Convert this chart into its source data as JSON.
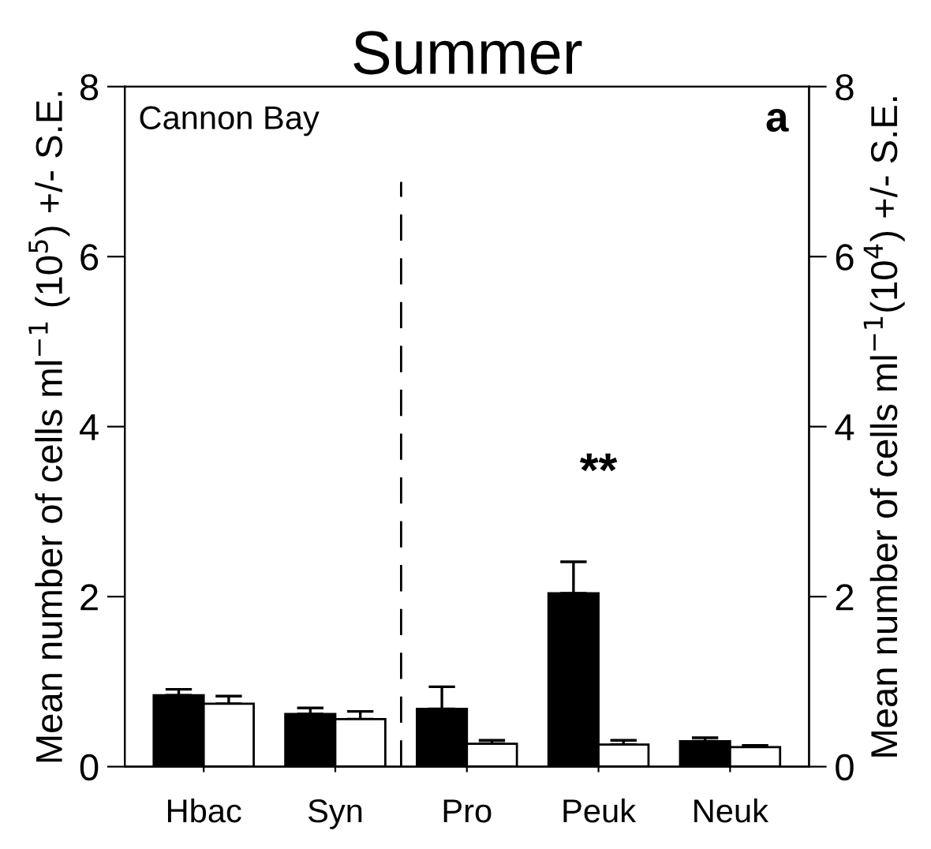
{
  "chart_data": {
    "type": "bar",
    "title": "Summer",
    "categories": [
      "Hbac",
      "Syn",
      "Pro",
      "Peuk",
      "Neuk"
    ],
    "series": [
      {
        "color": "#000000",
        "values": [
          0.84,
          0.62,
          0.68,
          2.04,
          0.3
        ],
        "errors": [
          [
            0.84,
            0.91
          ],
          [
            0.62,
            0.69
          ],
          [
            0.68,
            0.94
          ],
          [
            2.04,
            2.41
          ],
          [
            0.3,
            0.34
          ]
        ]
      },
      {
        "color": "#ffffff",
        "values": [
          0.74,
          0.56,
          0.27,
          0.26,
          0.23
        ],
        "errors": [
          [
            0.74,
            0.83
          ],
          [
            0.56,
            0.65
          ],
          [
            0.27,
            0.31
          ],
          [
            0.26,
            0.31
          ],
          [
            0.23,
            0.25
          ]
        ]
      }
    ],
    "ylabel": "Mean number of cells ml$^{−1}$ (10$^{5}$) +/- S.E.",
    "y2label": "Mean number of cells ml$^{−1}$(10$^{4}$) +/- S.E.",
    "ylim": [
      0,
      8
    ],
    "yticks": [
      0,
      2,
      4,
      6,
      8
    ],
    "y2lim": [
      0,
      8
    ],
    "y2ticks": [
      0,
      2,
      4,
      6,
      8
    ],
    "annotations": [
      "Cannon Bay",
      "a",
      "**"
    ],
    "grid": false,
    "legend": false
  }
}
